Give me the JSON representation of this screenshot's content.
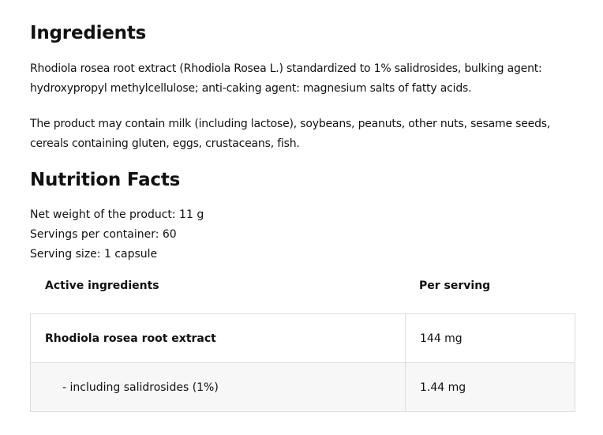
{
  "ingredients": {
    "title": "Ingredients",
    "paragraph1": "Rhodiola rosea root extract (Rhodiola Rosea L.) standardized to 1% salidrosides, bulking agent: hydroxypropyl methylcellulose; anti-caking agent: magnesium salts of fatty acids.",
    "paragraph2": "The product may contain milk (including lactose), soybeans, peanuts, other nuts, sesame seeds, cereals containing gluten, eggs, crustaceans, fish."
  },
  "nutrition": {
    "title": "Nutrition Facts",
    "net_weight": "Net weight of the product: 11 g",
    "servings": "Servings per container: 60",
    "serving_size": "Serving size: 1 capsule",
    "table": {
      "headers": [
        "Active ingredients",
        "Per serving"
      ],
      "rows": [
        {
          "name": "Rhodiola rosea root extract",
          "value": "144 mg"
        },
        {
          "name": "- including salidrosides (1%)",
          "value": "1.44 mg"
        }
      ]
    }
  }
}
